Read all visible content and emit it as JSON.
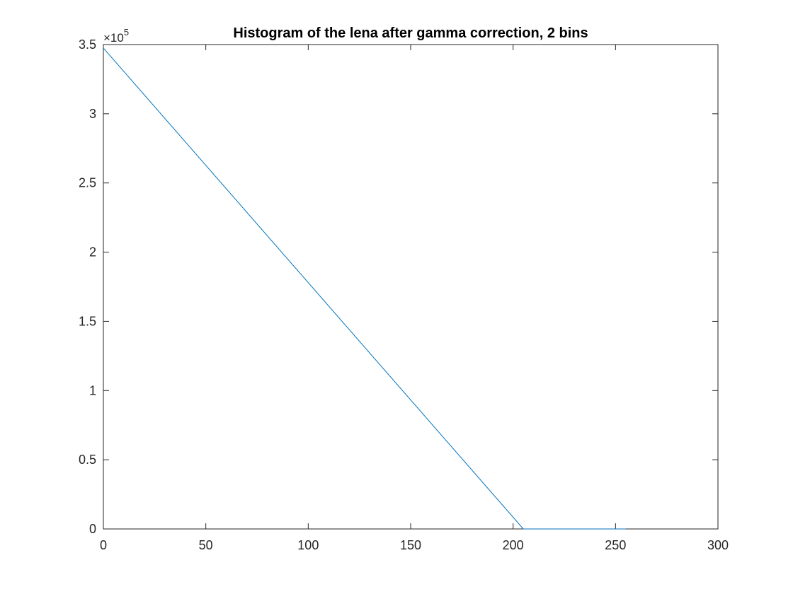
{
  "chart_data": {
    "type": "line",
    "title": "Histogram of the lena after gamma correction, 2 bins",
    "xlabel": "",
    "ylabel": "",
    "xlim": [
      0,
      300
    ],
    "ylim": [
      0,
      350000
    ],
    "x_ticks": [
      0,
      50,
      100,
      150,
      200,
      250,
      300
    ],
    "x_tick_labels": [
      "0",
      "50",
      "100",
      "150",
      "200",
      "250",
      "300"
    ],
    "y_ticks": [
      0,
      50000,
      100000,
      150000,
      200000,
      250000,
      300000,
      350000
    ],
    "y_tick_labels": [
      "0",
      "0.5",
      "1",
      "1.5",
      "2",
      "2.5",
      "3",
      "3.5"
    ],
    "y_exponent": {
      "base": "×10",
      "power": "5"
    },
    "grid": false,
    "series": [
      {
        "color": "#0072BD",
        "x": [
          0,
          205,
          255
        ],
        "y": [
          347500,
          0,
          0
        ]
      }
    ]
  }
}
